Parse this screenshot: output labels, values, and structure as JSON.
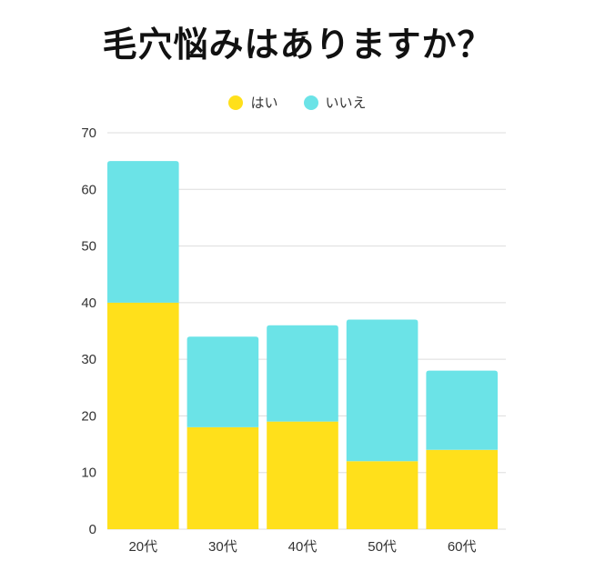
{
  "colors": {
    "yes": "#FFE01B",
    "no": "#6BE3E7",
    "grid": "#dddddd",
    "text": "#333333",
    "title": "#111111"
  },
  "chart_data": {
    "type": "bar",
    "stacked": true,
    "title": "毛穴悩みはありますか？",
    "categories": [
      "20代",
      "30代",
      "40代",
      "50代",
      "60代"
    ],
    "series": [
      {
        "name": "はい",
        "values": [
          40,
          18,
          19,
          12,
          14
        ]
      },
      {
        "name": "いいえ",
        "values": [
          25,
          16,
          17,
          25,
          14
        ]
      }
    ],
    "ylim": [
      0,
      70
    ],
    "yticks": [
      "0",
      "10",
      "20",
      "30",
      "40",
      "50",
      "60",
      "70"
    ],
    "grid": true,
    "legend": "top-center"
  }
}
